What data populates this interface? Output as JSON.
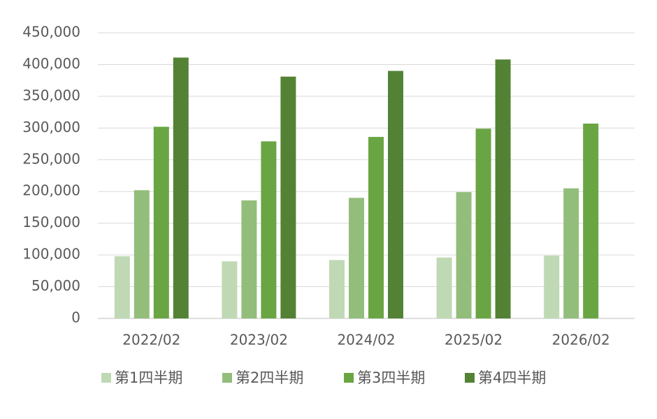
{
  "chart_data": {
    "type": "bar",
    "categories": [
      "2022/02",
      "2023/02",
      "2024/02",
      "2025/02",
      "2026/02"
    ],
    "series": [
      {
        "name": "第1四半期",
        "color": "#c0d9b5",
        "values": [
          98000,
          90000,
          92000,
          96000,
          99000
        ]
      },
      {
        "name": "第2四半期",
        "color": "#93bd7b",
        "values": [
          202000,
          186000,
          190000,
          199000,
          205000
        ]
      },
      {
        "name": "第3四半期",
        "color": "#6aa544",
        "values": [
          302000,
          279000,
          286000,
          299000,
          307000
        ]
      },
      {
        "name": "第4四半期",
        "color": "#548235",
        "values": [
          411000,
          381000,
          390000,
          408000,
          null
        ]
      }
    ],
    "ylim": [
      0,
      450000
    ],
    "yticks": [
      0,
      {
        "value": 50000,
        "label": "50,000"
      },
      {
        "value": 100000,
        "label": "100,000"
      },
      {
        "value": 150000,
        "label": "150,000"
      },
      {
        "value": 200000,
        "label": "200,000"
      },
      {
        "value": 250000,
        "label": "250,000"
      },
      {
        "value": 300000,
        "label": "300,000"
      },
      {
        "value": 350000,
        "label": "350,000"
      },
      {
        "value": 400000,
        "label": "400,000"
      },
      {
        "value": 450000,
        "label": "450,000"
      }
    ],
    "grid": true,
    "legend": "bottom"
  }
}
